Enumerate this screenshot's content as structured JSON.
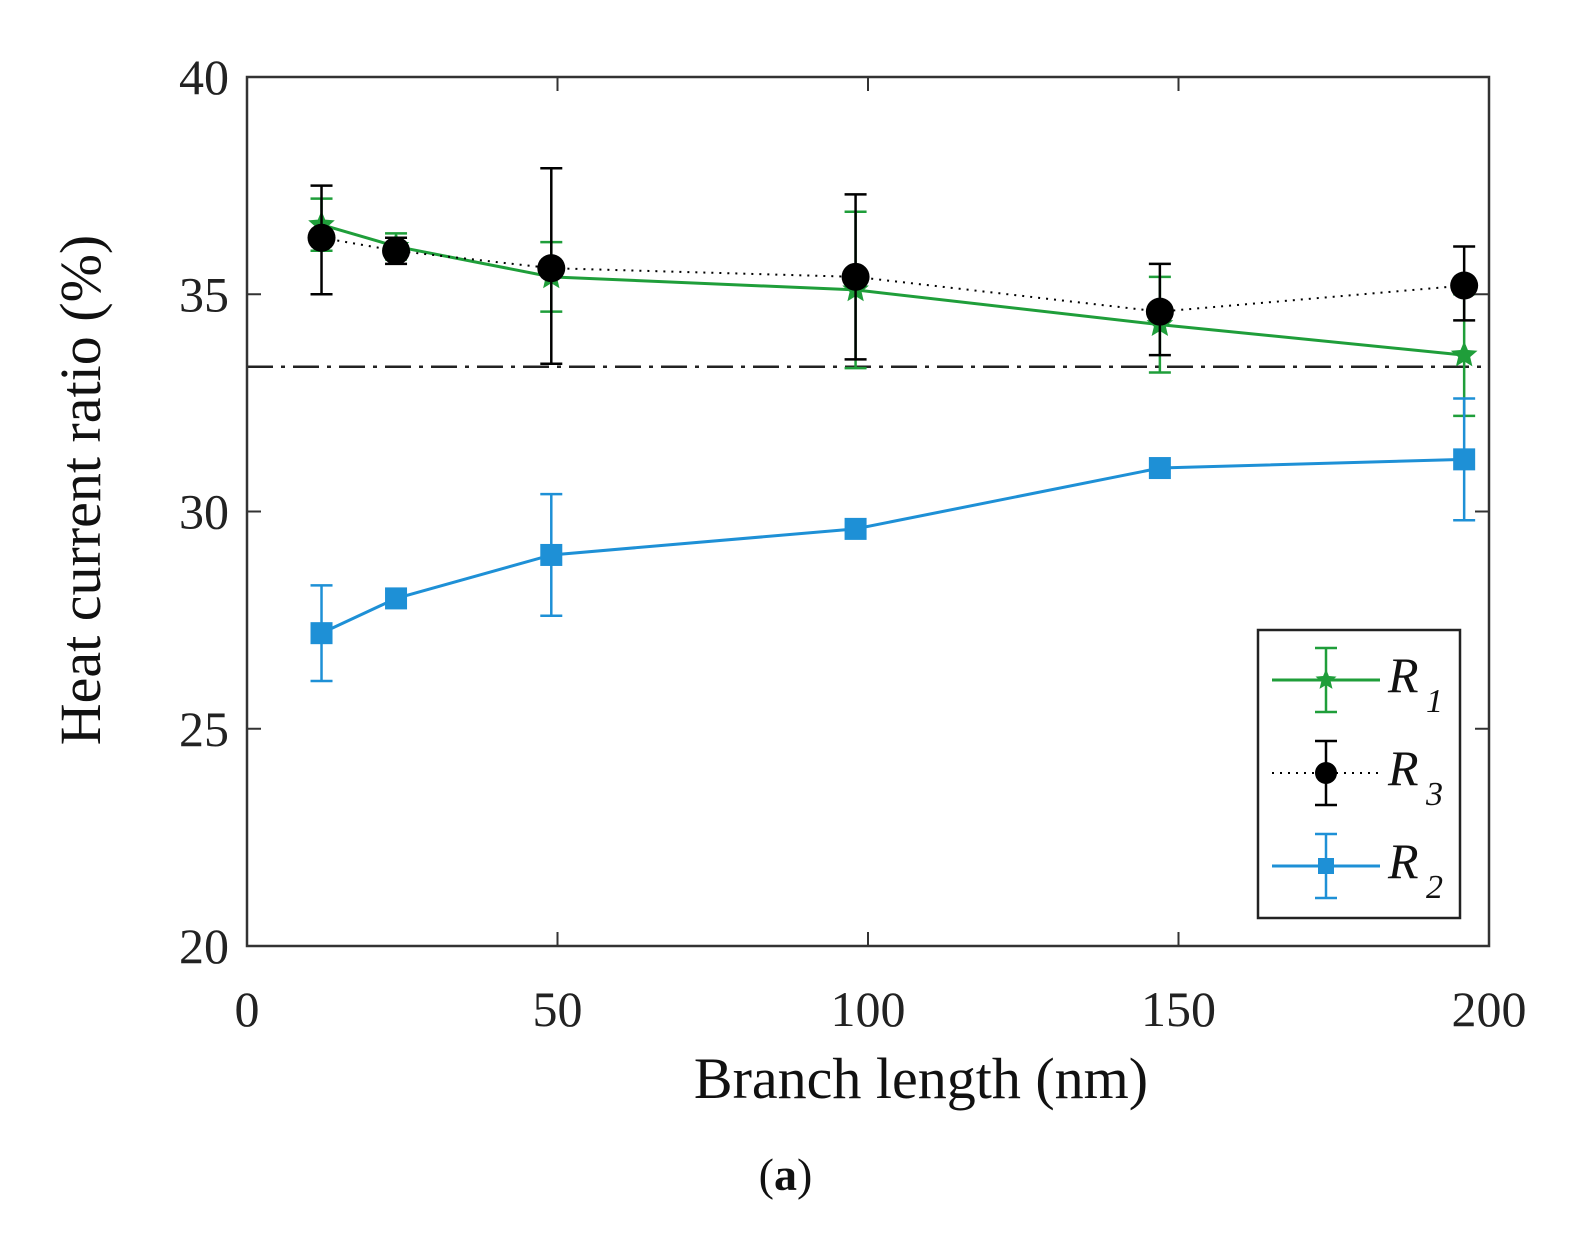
{
  "chart_data": {
    "type": "line",
    "xlabel": "Branch length (nm)",
    "ylabel": "Heat current ratio (%)",
    "xlim": [
      0,
      200
    ],
    "ylim": [
      20,
      40
    ],
    "xticks": [
      "0",
      "50",
      "100",
      "150",
      "200"
    ],
    "yticks": [
      "20",
      "25",
      "30",
      "35",
      "40"
    ],
    "reference_line": {
      "y": 33.33,
      "style": "dash-dot"
    },
    "legend_position": "bottom-right",
    "series": [
      {
        "name": "R",
        "subscript": "1",
        "color": "#1f9e3a",
        "marker": "star",
        "linestyle": "solid",
        "x": [
          12,
          24,
          49,
          98,
          147,
          196
        ],
        "values": [
          36.6,
          36.1,
          35.4,
          35.1,
          34.3,
          33.6
        ],
        "err_low": [
          0.6,
          0.3,
          0.8,
          1.8,
          1.1,
          1.4
        ],
        "err_high": [
          0.6,
          0.3,
          0.8,
          1.8,
          1.1,
          1.4
        ]
      },
      {
        "name": "R",
        "subscript": "3",
        "color": "#000000",
        "marker": "circle",
        "linestyle": "dotted",
        "x": [
          12,
          24,
          49,
          98,
          147,
          196
        ],
        "values": [
          36.3,
          36.0,
          35.6,
          35.4,
          34.6,
          35.2
        ],
        "err_low": [
          1.3,
          0.3,
          2.2,
          1.9,
          1.0,
          0.8
        ],
        "err_high": [
          1.2,
          0.3,
          2.3,
          1.9,
          1.1,
          0.9
        ]
      },
      {
        "name": "R",
        "subscript": "2",
        "color": "#1e90d6",
        "marker": "square",
        "linestyle": "solid",
        "x": [
          12,
          24,
          49,
          98,
          147,
          196
        ],
        "values": [
          27.2,
          28.0,
          29.0,
          29.6,
          31.0,
          31.2
        ],
        "err_low": [
          1.1,
          0.1,
          1.4,
          0.1,
          0.1,
          1.4
        ],
        "err_high": [
          1.1,
          0.1,
          1.4,
          0.1,
          0.1,
          1.4
        ]
      }
    ]
  },
  "caption": {
    "open": "(",
    "letter": "a",
    "close": ")"
  }
}
